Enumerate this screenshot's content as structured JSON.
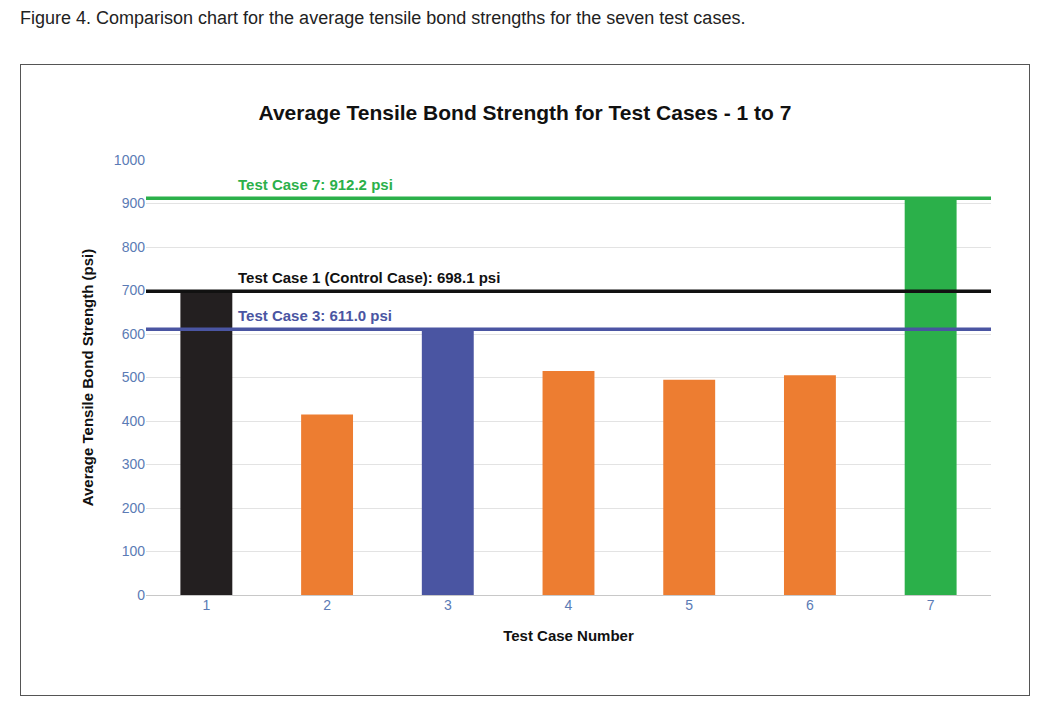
{
  "caption": "Figure 4. Comparison chart for the average tensile bond strengths for the seven test cases.",
  "chart_data": {
    "type": "bar",
    "title": "Average Tensile Bond Strength for Test Cases - 1 to 7",
    "x_label": "Test Case Number",
    "y_label": "Average Tensile Bond Strength (psi)",
    "categories": [
      "1",
      "2",
      "3",
      "4",
      "5",
      "6",
      "7"
    ],
    "values": [
      698.1,
      415,
      611.0,
      515,
      495,
      505,
      912.2
    ],
    "colors": [
      "#231f20",
      "#ed7d31",
      "#4a55a2",
      "#ed7d31",
      "#ed7d31",
      "#ed7d31",
      "#2bb04a"
    ],
    "ylim": [
      0,
      1000
    ],
    "yticks": [
      0,
      100,
      200,
      300,
      400,
      500,
      600,
      700,
      800,
      900,
      1000
    ],
    "grid": true,
    "reference_lines": [
      {
        "value": 912.2,
        "label": "Test Case 7: 912.2 psi",
        "color": "#2bb04a"
      },
      {
        "value": 698.1,
        "label": "Test Case 1 (Control Case): 698.1 psi",
        "color": "#111111"
      },
      {
        "value": 611.0,
        "label": "Test Case 3: 611.0 psi",
        "color": "#4a55a2"
      }
    ]
  }
}
